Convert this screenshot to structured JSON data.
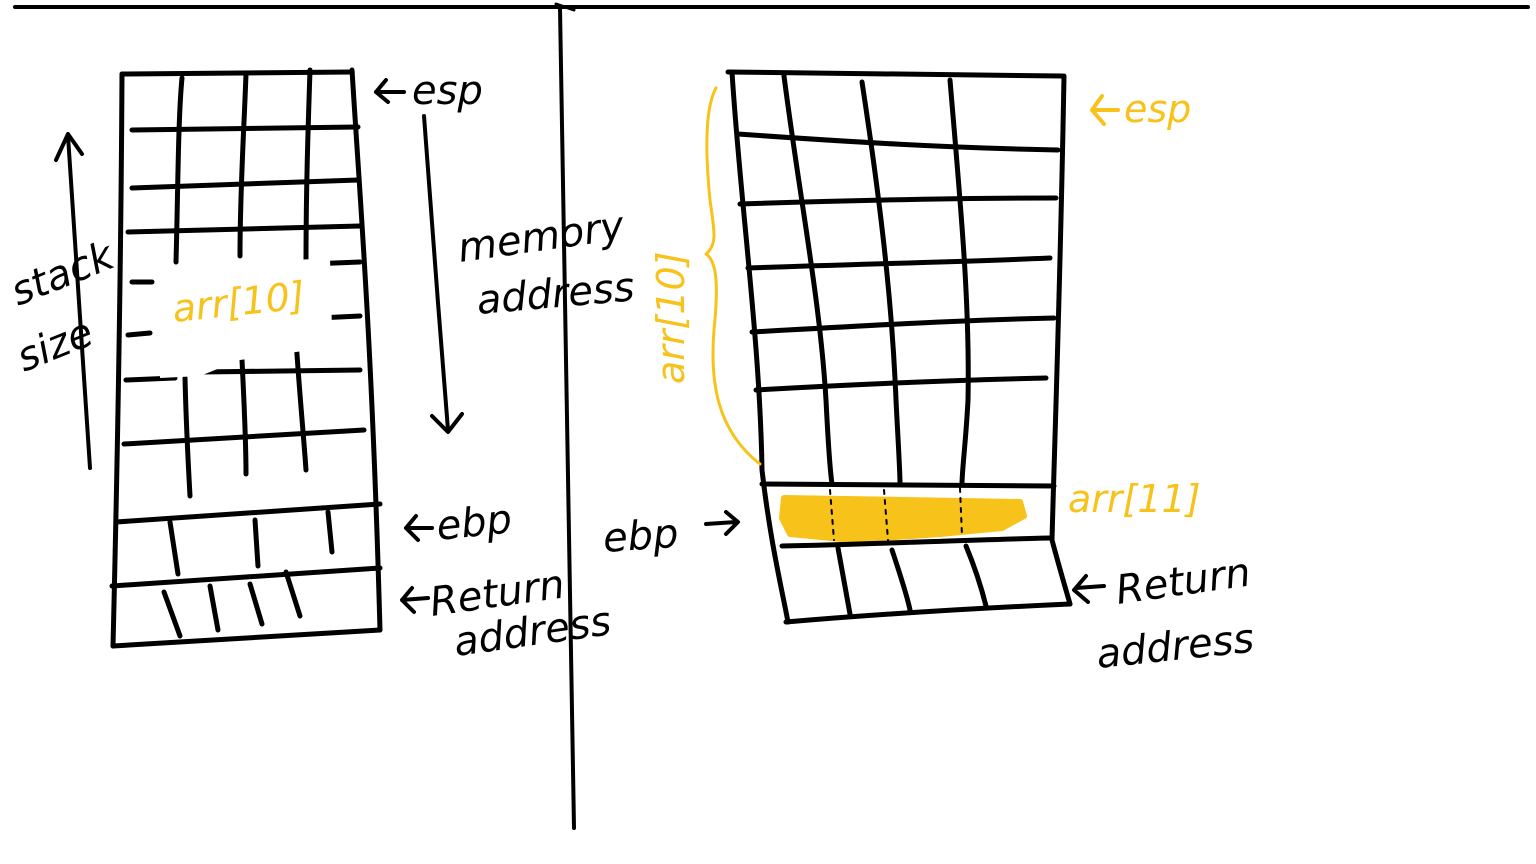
{
  "colors": {
    "ink": "#000000",
    "highlight": "#f7c21a",
    "background": "#ffffff"
  },
  "left": {
    "stack_label_1": "stack",
    "stack_label_2": "size",
    "buffer_label": "arr[10]",
    "esp_label": "esp",
    "memory_label_1": "memory",
    "memory_label_2": "address",
    "ebp_label": "ebp",
    "return_label_1": "Return",
    "return_label_2": "address"
  },
  "right": {
    "esp_label": "esp",
    "buffer_label": "arr[10]",
    "overflow_label": "arr[11]",
    "ebp_label": "ebp",
    "return_label_1": "Return",
    "return_label_2": "address"
  }
}
